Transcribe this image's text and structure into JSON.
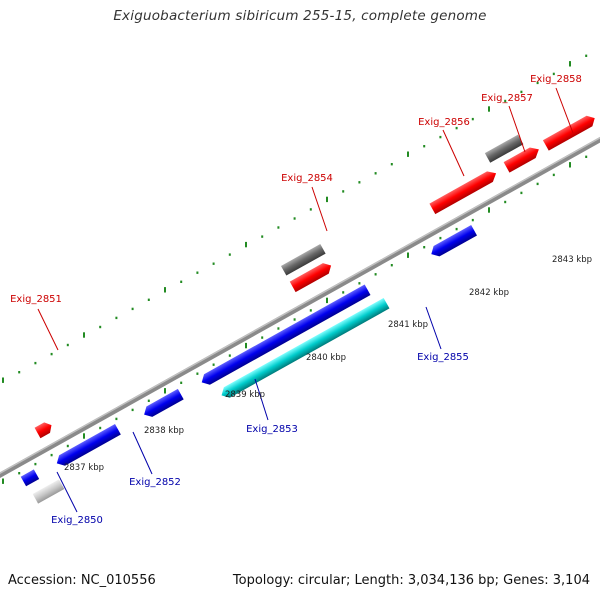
{
  "title": "Exiguobacterium sibiricum 255-15, complete genome",
  "footer": {
    "accession": "Accession: NC_010556",
    "topology": "Topology: circular; Length: 3,034,136 bp; Genes: 3,104"
  },
  "colors": {
    "forward_label": "#cc0000",
    "reverse_label": "#0000aa",
    "backbone": "#888888",
    "grid": "#228b22",
    "gene_red": "#ff0000",
    "gene_blue": "#0000ee",
    "gene_gray": "#666666",
    "gene_cyan": "#00cccc",
    "gene_lightgray": "#c8c8c8"
  },
  "genes": [
    {
      "id": "Exig_2851",
      "strand": "forward"
    },
    {
      "id": "Exig_2854",
      "strand": "forward"
    },
    {
      "id": "Exig_2856",
      "strand": "forward"
    },
    {
      "id": "Exig_2857",
      "strand": "forward"
    },
    {
      "id": "Exig_2858",
      "strand": "forward"
    },
    {
      "id": "Exig_2850",
      "strand": "reverse"
    },
    {
      "id": "Exig_2852",
      "strand": "reverse"
    },
    {
      "id": "Exig_2853",
      "strand": "reverse"
    },
    {
      "id": "Exig_2855",
      "strand": "reverse"
    }
  ],
  "ticks": [
    "2837 kbp",
    "2838 kbp",
    "2839 kbp",
    "2840 kbp",
    "2841 kbp",
    "2842 kbp",
    "2843 kbp"
  ]
}
